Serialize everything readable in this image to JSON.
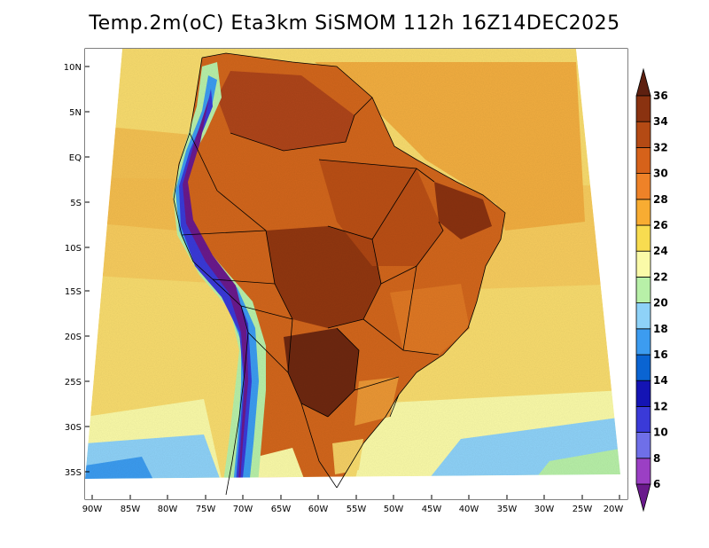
{
  "title": "Temp.2m(oC) Eta3km SiSMOM 112h 16Z14DEC2025",
  "axes": {
    "lat_labels": [
      "10N",
      "5N",
      "EQ",
      "5S",
      "10S",
      "15S",
      "20S",
      "25S",
      "30S",
      "35S"
    ],
    "lon_labels": [
      "90W",
      "85W",
      "80W",
      "75W",
      "70W",
      "65W",
      "60W",
      "55W",
      "50W",
      "45W",
      "40W",
      "35W",
      "30W",
      "25W",
      "20W"
    ]
  },
  "colorbar": {
    "levels": [
      "6",
      "8",
      "10",
      "12",
      "14",
      "16",
      "18",
      "20",
      "22",
      "24",
      "26",
      "28",
      "30",
      "32",
      "34",
      "36"
    ],
    "colors": [
      "#6a1a8c",
      "#9b3fc4",
      "#6f6fe8",
      "#3a3ad8",
      "#1414b4",
      "#0a64d2",
      "#3c9cf0",
      "#8ed2f8",
      "#b8f0a8",
      "#fafaa8",
      "#f8dc50",
      "#f8ac32",
      "#ee8228",
      "#d6621a",
      "#b44a14",
      "#8a3210",
      "#5e2010"
    ]
  },
  "legend_colors": {
    "ocean_cool": "#f8dc6e",
    "land_hot": "#b85418"
  }
}
